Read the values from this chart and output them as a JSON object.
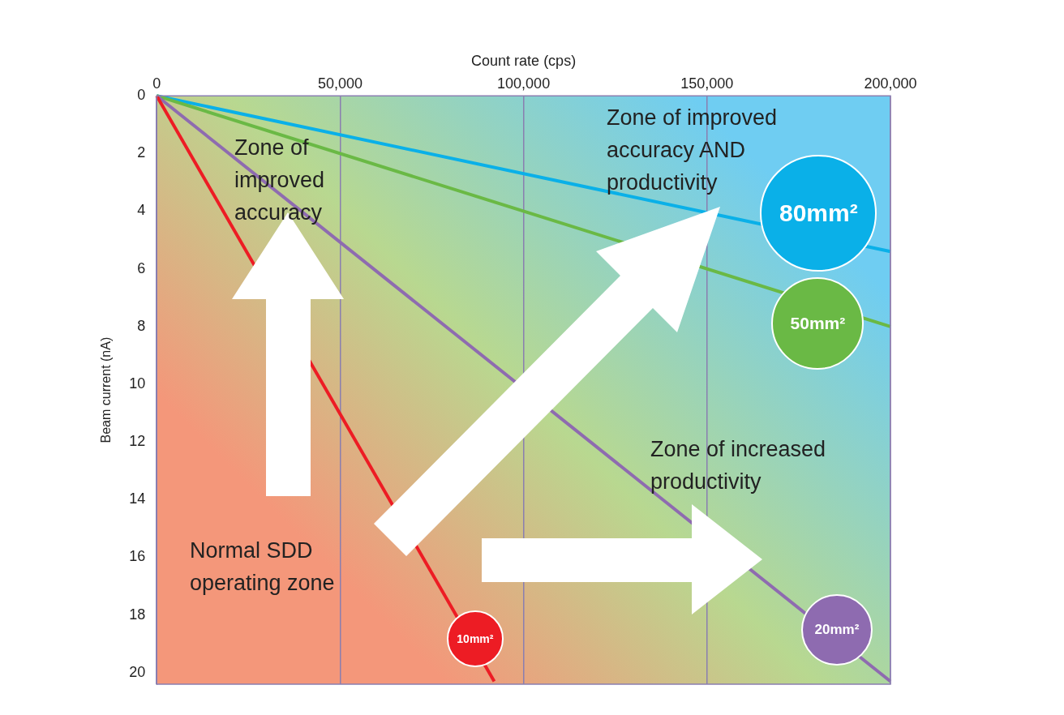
{
  "chart_data": {
    "type": "line",
    "xlabel": "Count rate (cps)",
    "ylabel": "Beam current (nA)",
    "xlim": [
      0,
      200000
    ],
    "xticks": [
      0,
      {
        "value": 50000,
        "label": "50,000"
      },
      {
        "value": 100000,
        "label": "100,000"
      },
      {
        "value": 150000,
        "label": "150,000"
      },
      {
        "value": 200000,
        "label": "200,000"
      }
    ],
    "ylim": [
      20.4,
      0
    ],
    "yticks": [
      0,
      2,
      4,
      6,
      8,
      10,
      12,
      14,
      16,
      18,
      20
    ],
    "grid": "x",
    "legend": false,
    "marker": "none",
    "line_style": "solid",
    "series": [
      {
        "name": "10mm²",
        "color": "#ed1c24",
        "x": [
          0,
          92000
        ],
        "values": [
          0,
          20.3
        ]
      },
      {
        "name": "20mm²",
        "color": "#8e6bb0",
        "x": [
          0,
          200000
        ],
        "values": [
          0,
          20.3
        ]
      },
      {
        "name": "50mm²",
        "color": "#6ab945",
        "x": [
          0,
          200000
        ],
        "values": [
          0,
          8.0
        ]
      },
      {
        "name": "80mm²",
        "color": "#0ab0e8",
        "x": [
          0,
          200000
        ],
        "values": [
          0,
          5.4
        ]
      }
    ],
    "annotations": [
      "Zone of improved accuracy",
      "Zone of improved accuracy AND productivity",
      "Zone of increased productivity",
      "Normal SDD operating zone"
    ]
  }
}
